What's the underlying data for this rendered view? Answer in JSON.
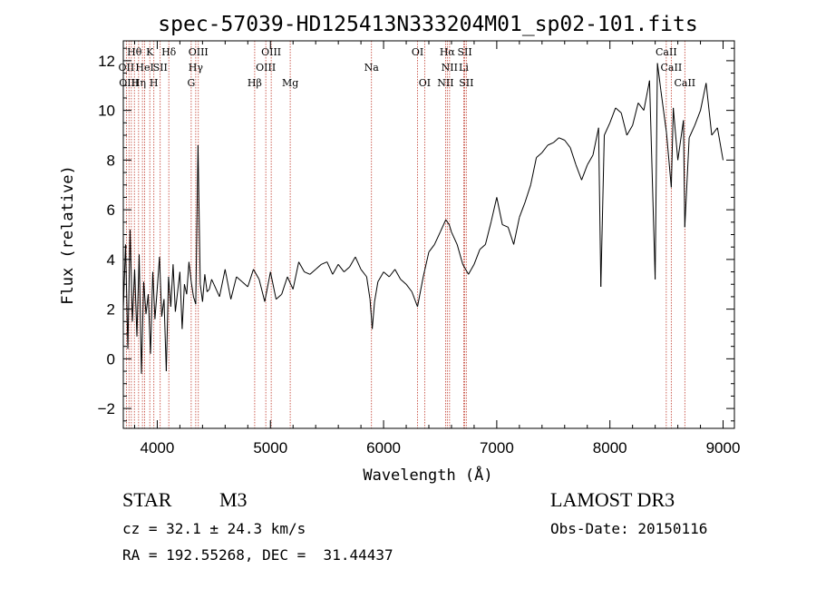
{
  "chart_data": {
    "type": "line",
    "title": "spec-57039-HD125413N333204M01_sp02-101.fits",
    "xlabel": "Wavelength (Å)",
    "ylabel": "Flux (relative)",
    "xlim": [
      3700,
      9100
    ],
    "ylim": [
      -2.8,
      12.8
    ],
    "x_ticks": [
      4000,
      5000,
      6000,
      7000,
      8000,
      9000
    ],
    "y_ticks": [
      -2,
      0,
      2,
      4,
      6,
      8,
      10,
      12
    ],
    "grid": false,
    "series": [
      {
        "x": [
          3700,
          3720,
          3740,
          3760,
          3780,
          3800,
          3820,
          3840,
          3860,
          3880,
          3900,
          3920,
          3940,
          3960,
          3980,
          4000,
          4020,
          4040,
          4060,
          4080,
          4100,
          4120,
          4140,
          4160,
          4180,
          4200,
          4220,
          4240,
          4260,
          4280,
          4300,
          4320,
          4340,
          4360,
          4380,
          4400,
          4420,
          4440,
          4460,
          4480,
          4500,
          4550,
          4600,
          4650,
          4700,
          4750,
          4800,
          4850,
          4900,
          4950,
          5000,
          5050,
          5100,
          5150,
          5200,
          5250,
          5300,
          5350,
          5400,
          5450,
          5500,
          5550,
          5600,
          5650,
          5700,
          5750,
          5800,
          5850,
          5880,
          5900,
          5920,
          5950,
          6000,
          6050,
          6100,
          6150,
          6200,
          6250,
          6300,
          6350,
          6400,
          6450,
          6500,
          6550,
          6580,
          6600,
          6650,
          6700,
          6750,
          6800,
          6850,
          6900,
          6950,
          7000,
          7050,
          7100,
          7150,
          7200,
          7250,
          7300,
          7350,
          7400,
          7450,
          7500,
          7550,
          7600,
          7650,
          7700,
          7750,
          7800,
          7850,
          7900,
          7920,
          7950,
          8000,
          8050,
          8100,
          8150,
          8200,
          8250,
          8300,
          8350,
          8400,
          8420,
          8450,
          8500,
          8542,
          8560,
          8600,
          8650,
          8662,
          8700,
          8750,
          8800,
          8850,
          8900,
          8950,
          9000
        ],
        "y": [
          2.0,
          4.6,
          0.4,
          5.2,
          1.5,
          3.6,
          0.9,
          4.2,
          -0.6,
          3.1,
          1.8,
          2.6,
          0.2,
          3.5,
          1.6,
          2.8,
          4.1,
          1.7,
          2.4,
          -0.5,
          3.3,
          2.1,
          3.8,
          1.9,
          2.7,
          3.5,
          1.2,
          3.0,
          2.6,
          3.9,
          3.1,
          2.5,
          2.2,
          8.6,
          3.0,
          2.3,
          3.4,
          2.7,
          2.8,
          3.2,
          3.0,
          2.5,
          3.6,
          2.4,
          3.3,
          3.1,
          2.9,
          3.6,
          3.2,
          2.3,
          3.5,
          2.4,
          2.6,
          3.3,
          2.8,
          3.9,
          3.5,
          3.4,
          3.6,
          3.8,
          3.9,
          3.4,
          3.8,
          3.5,
          3.7,
          4.1,
          3.6,
          3.3,
          2.4,
          1.2,
          2.3,
          3.1,
          3.5,
          3.3,
          3.6,
          3.2,
          3.0,
          2.7,
          2.1,
          3.3,
          4.3,
          4.6,
          5.1,
          5.6,
          5.4,
          5.1,
          4.6,
          3.8,
          3.4,
          3.8,
          4.4,
          4.6,
          5.5,
          6.5,
          5.4,
          5.3,
          4.6,
          5.7,
          6.3,
          7.0,
          8.1,
          8.3,
          8.6,
          8.7,
          8.9,
          8.8,
          8.5,
          7.8,
          7.2,
          7.8,
          8.2,
          9.3,
          2.9,
          9.0,
          9.5,
          10.1,
          9.9,
          9.0,
          9.4,
          10.3,
          10.0,
          11.2,
          3.2,
          11.9,
          10.8,
          9.1,
          6.9,
          10.1,
          8.0,
          9.6,
          5.3,
          8.9,
          9.4,
          10.0,
          11.1,
          9.0,
          9.3,
          8.0
        ]
      }
    ],
    "line_markers": {
      "colors": {
        "marker": "#c0392b",
        "trace": "#000000"
      },
      "wavelengths": [
        3727,
        3750,
        3771,
        3798,
        3835,
        3869,
        3889,
        3934,
        3970,
        4026,
        4102,
        4300,
        4340,
        4363,
        4861,
        4959,
        5007,
        5175,
        5893,
        6300,
        6363,
        6548,
        6563,
        6583,
        6708,
        6717,
        6731,
        8498,
        8542,
        8662
      ]
    },
    "line_labels": [
      {
        "text": "Hθ",
        "row": 0,
        "wl": 3798
      },
      {
        "text": "K",
        "row": 0,
        "wl": 3934
      },
      {
        "text": "Hδ",
        "row": 0,
        "wl": 4102
      },
      {
        "text": "OIII",
        "row": 0,
        "wl": 4363
      },
      {
        "text": "OIII",
        "row": 0,
        "wl": 5007
      },
      {
        "text": "OI",
        "row": 0,
        "wl": 6300
      },
      {
        "text": "Hα",
        "row": 0,
        "wl": 6563
      },
      {
        "text": "SII",
        "row": 0,
        "wl": 6717
      },
      {
        "text": "CaII",
        "row": 0,
        "wl": 8498
      },
      {
        "text": "OII",
        "row": 1,
        "wl": 3727
      },
      {
        "text": "HeI",
        "row": 1,
        "wl": 3889
      },
      {
        "text": "SII",
        "row": 1,
        "wl": 4026
      },
      {
        "text": "Hγ",
        "row": 1,
        "wl": 4340
      },
      {
        "text": "OIII",
        "row": 1,
        "wl": 4959
      },
      {
        "text": "Na",
        "row": 1,
        "wl": 5893
      },
      {
        "text": "NII",
        "row": 1,
        "wl": 6583
      },
      {
        "text": "Li",
        "row": 1,
        "wl": 6708
      },
      {
        "text": "CaII",
        "row": 1,
        "wl": 8542
      },
      {
        "text": "OIII",
        "row": 2,
        "wl": 3750
      },
      {
        "text": "Hη",
        "row": 2,
        "wl": 3835
      },
      {
        "text": "H",
        "row": 2,
        "wl": 3970
      },
      {
        "text": "G",
        "row": 2,
        "wl": 4300
      },
      {
        "text": "Hβ",
        "row": 2,
        "wl": 4861
      },
      {
        "text": "Mg",
        "row": 2,
        "wl": 5175
      },
      {
        "text": "OI",
        "row": 2,
        "wl": 6363
      },
      {
        "text": "NII",
        "row": 2,
        "wl": 6548
      },
      {
        "text": "SII",
        "row": 2,
        "wl": 6731
      },
      {
        "text": "CaII",
        "row": 2,
        "wl": 8662
      }
    ]
  },
  "info": {
    "object_class": "STAR",
    "subclass": "M3",
    "survey": "LAMOST DR3",
    "redshift": "cz = 32.1 ± 24.3 km/s",
    "obs_date": "Obs-Date: 20150116",
    "coords": "RA = 192.55268, DEC =  31.44437"
  }
}
